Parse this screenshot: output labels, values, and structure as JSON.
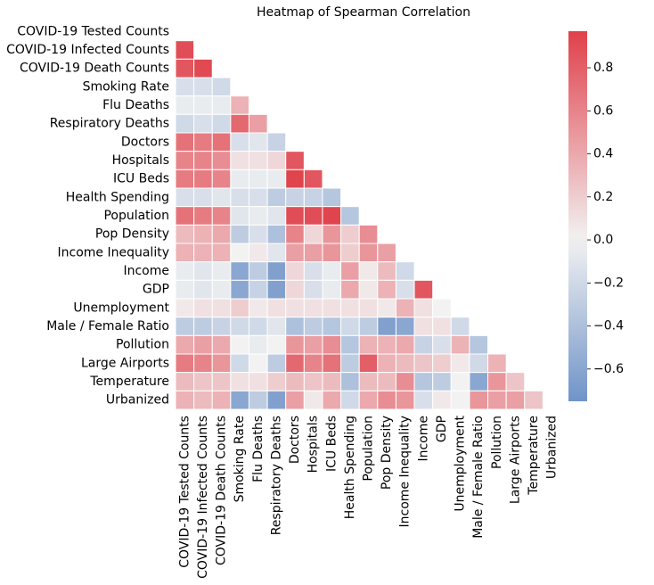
{
  "chart_data": {
    "type": "heatmap",
    "title": "Heatmap of Spearman Correlation",
    "categories": [
      "COVID-19 Tested Counts",
      "COVID-19 Infected Counts",
      "COVID-19 Death Counts",
      "Smoking Rate",
      "Flu Deaths",
      "Respiratory Deaths",
      "Doctors",
      "Hospitals",
      "ICU Beds",
      "Health Spending",
      "Population",
      "Pop Density",
      "Income Inequality",
      "Income",
      "GDP",
      "Unemployment",
      "Male / Female Ratio",
      "Pollution",
      "Large Airports",
      "Temperature",
      "Urbanized"
    ],
    "values": [
      [],
      [
        0.9
      ],
      [
        0.85,
        0.92
      ],
      [
        -0.15,
        -0.15,
        -0.2
      ],
      [
        -0.05,
        -0.05,
        -0.05,
        0.35
      ],
      [
        -0.2,
        -0.15,
        -0.2,
        0.75,
        0.45
      ],
      [
        0.7,
        0.65,
        0.7,
        -0.15,
        -0.1,
        -0.25
      ],
      [
        0.6,
        0.6,
        0.55,
        0.1,
        0.1,
        0.15,
        0.85
      ],
      [
        0.65,
        0.65,
        0.6,
        -0.05,
        -0.05,
        -0.05,
        0.95,
        0.85
      ],
      [
        -0.15,
        -0.15,
        -0.1,
        -0.15,
        -0.15,
        -0.3,
        -0.25,
        -0.25,
        -0.35
      ],
      [
        0.7,
        0.65,
        0.6,
        -0.1,
        -0.05,
        -0.1,
        0.9,
        0.9,
        0.95,
        -0.35
      ],
      [
        0.3,
        0.35,
        0.4,
        -0.3,
        -0.15,
        -0.4,
        0.6,
        0.15,
        0.5,
        0.2,
        0.55
      ],
      [
        0.35,
        0.35,
        0.35,
        0.0,
        0.05,
        -0.1,
        0.45,
        0.45,
        0.5,
        0.2,
        0.5,
        0.45
      ],
      [
        -0.05,
        -0.1,
        -0.05,
        -0.6,
        -0.3,
        -0.65,
        0.15,
        -0.15,
        -0.05,
        0.45,
        0.05,
        0.3,
        -0.2
      ],
      [
        -0.05,
        -0.1,
        -0.05,
        -0.6,
        -0.25,
        -0.65,
        0.15,
        -0.15,
        -0.05,
        0.4,
        0.05,
        0.35,
        -0.15,
        0.85
      ],
      [
        0.05,
        0.1,
        0.1,
        0.2,
        0.05,
        0.1,
        0.1,
        0.1,
        0.1,
        0.1,
        0.1,
        0.05,
        0.35,
        0.1,
        0.0
      ],
      [
        -0.3,
        -0.3,
        -0.25,
        -0.2,
        -0.2,
        -0.1,
        -0.4,
        -0.3,
        -0.35,
        -0.2,
        -0.3,
        -0.65,
        -0.6,
        0.1,
        0.1,
        -0.2
      ],
      [
        0.4,
        0.45,
        0.4,
        0.0,
        -0.05,
        0.0,
        0.5,
        0.45,
        0.55,
        -0.35,
        0.35,
        0.35,
        0.4,
        -0.25,
        -0.15,
        0.35,
        -0.35
      ],
      [
        0.65,
        0.6,
        0.5,
        -0.2,
        0.0,
        -0.3,
        0.75,
        0.6,
        0.7,
        -0.3,
        0.8,
        0.35,
        0.3,
        0.25,
        0.2,
        0.05,
        -0.2,
        0.35
      ],
      [
        0.3,
        0.25,
        0.25,
        0.1,
        0.1,
        0.2,
        0.3,
        0.25,
        0.3,
        -0.4,
        0.3,
        0.3,
        0.55,
        -0.35,
        -0.3,
        0.0,
        -0.6,
        0.5,
        0.25
      ],
      [
        0.35,
        0.3,
        0.35,
        -0.6,
        -0.3,
        -0.65,
        0.45,
        0.05,
        0.4,
        -0.2,
        0.4,
        0.55,
        0.5,
        -0.15,
        0.05,
        0.0,
        0.5,
        0.45,
        0.45,
        0.25
      ]
    ],
    "colors": {
      "negative": "#4a78bc",
      "center": "#f2f2f2",
      "positive": "#e0404a"
    },
    "clim": [
      -0.75,
      0.97
    ],
    "cticks": [
      {
        "value": -0.6,
        "label": "−0.6"
      },
      {
        "value": -0.4,
        "label": "−0.4"
      },
      {
        "value": -0.2,
        "label": "−0.2"
      },
      {
        "value": 0,
        "label": "0.0"
      },
      0.2,
      0.4,
      0.6,
      0.8
    ]
  }
}
